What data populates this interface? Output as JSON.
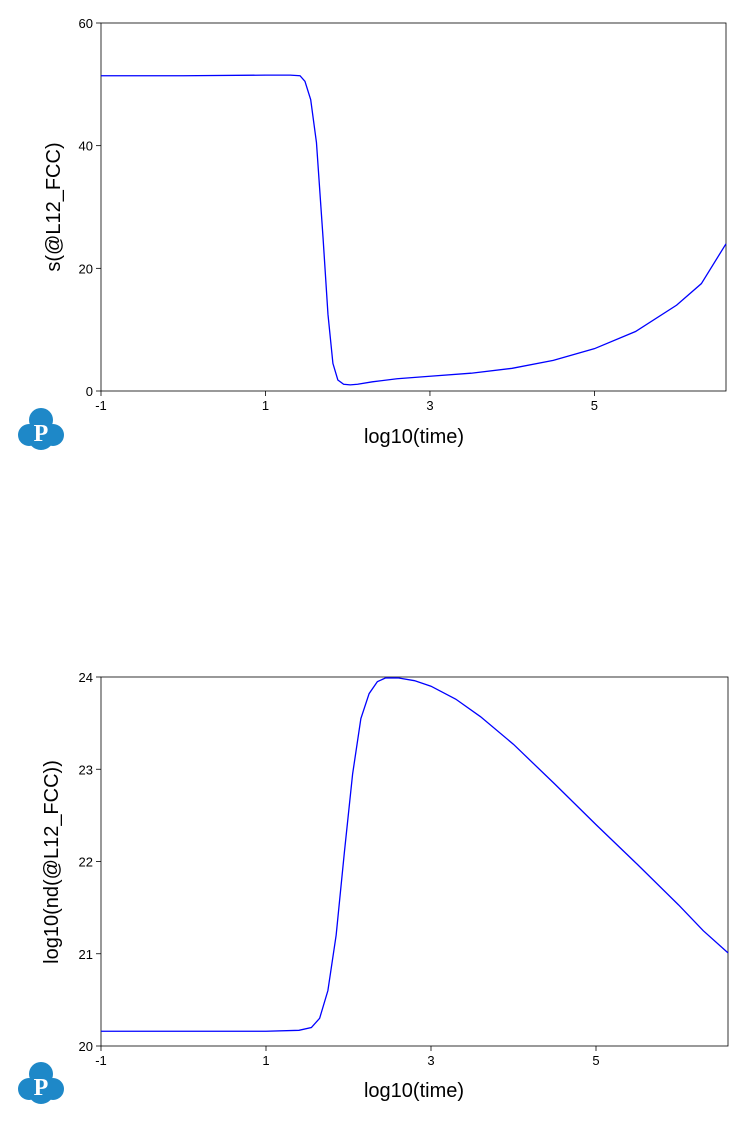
{
  "logo": {
    "letter": "P",
    "color": "#1e88c8"
  },
  "chart_data": [
    {
      "type": "line",
      "xlabel": "log10(time)",
      "ylabel": "s(@L12_FCC)",
      "xlim": [
        -1,
        6.6
      ],
      "ylim": [
        0,
        60
      ],
      "xticks": [
        -1,
        1,
        3,
        5
      ],
      "yticks": [
        0,
        20,
        40,
        60
      ],
      "grid": false,
      "line_color": "#0000ff",
      "series": [
        {
          "x": [
            -1,
            0,
            1,
            1.3,
            1.42,
            1.48,
            1.55,
            1.62,
            1.7,
            1.76,
            1.82,
            1.88,
            1.95,
            2.03,
            2.12,
            2.3,
            2.6,
            3.0,
            3.5,
            4.0,
            4.5,
            5.0,
            5.5,
            6.0,
            6.3,
            6.6
          ],
          "y": [
            51.4,
            51.4,
            51.5,
            51.5,
            51.4,
            50.5,
            47.5,
            40.5,
            25,
            12.5,
            4.5,
            1.8,
            1.1,
            1.0,
            1.1,
            1.5,
            2.0,
            2.4,
            2.9,
            3.7,
            5.0,
            6.9,
            9.7,
            14,
            17.5,
            24
          ]
        }
      ]
    },
    {
      "type": "line",
      "xlabel": "log10(time)",
      "ylabel": "log10(nd(@L12_FCC))",
      "xlim": [
        -1,
        6.6
      ],
      "ylim": [
        20,
        24
      ],
      "xticks": [
        -1,
        1,
        3,
        5
      ],
      "yticks": [
        20,
        21,
        22,
        23,
        24
      ],
      "grid": false,
      "line_color": "#0000ff",
      "series": [
        {
          "x": [
            -1,
            0,
            1,
            1.4,
            1.55,
            1.65,
            1.75,
            1.85,
            1.95,
            2.05,
            2.15,
            2.25,
            2.35,
            2.45,
            2.6,
            2.8,
            3.0,
            3.3,
            3.6,
            4.0,
            4.5,
            5.0,
            5.5,
            6.0,
            6.3,
            6.6
          ],
          "y": [
            20.16,
            20.16,
            20.16,
            20.17,
            20.2,
            20.3,
            20.6,
            21.2,
            22.1,
            22.95,
            23.55,
            23.82,
            23.95,
            23.99,
            23.99,
            23.96,
            23.9,
            23.76,
            23.57,
            23.27,
            22.84,
            22.4,
            21.97,
            21.53,
            21.25,
            21.01
          ]
        }
      ]
    }
  ]
}
